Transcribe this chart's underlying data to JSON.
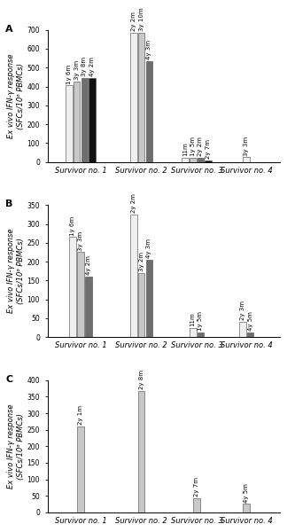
{
  "panels": [
    {
      "label": "A",
      "ylabel": "Ex vivo IFN-γ response\n(SFCs/10⁶ PBMCs)",
      "ylim": [
        0,
        700
      ],
      "yticks": [
        0,
        100,
        200,
        300,
        400,
        500,
        600,
        700
      ],
      "survivors": [
        {
          "name": "Survivor no. 1",
          "bars": [
            {
              "label": "1y 6m",
              "value": 405,
              "color": "#efefef"
            },
            {
              "label": "3y 3m",
              "value": 425,
              "color": "#c8c8c8"
            },
            {
              "label": "3y 8m",
              "value": 445,
              "color": "#6e6e6e"
            },
            {
              "label": "4y 2m",
              "value": 445,
              "color": "#111111"
            }
          ]
        },
        {
          "name": "Survivor no. 2",
          "bars": [
            {
              "label": "2y 2m",
              "value": 685,
              "color": "#efefef"
            },
            {
              "label": "3y 10m",
              "value": 685,
              "color": "#c8c8c8"
            },
            {
              "label": "4y 3m",
              "value": 535,
              "color": "#6e6e6e"
            }
          ]
        },
        {
          "name": "Survivor no. 3",
          "bars": [
            {
              "label": "11m",
              "value": 22,
              "color": "#efefef"
            },
            {
              "label": "1y 5m",
              "value": 22,
              "color": "#c8c8c8"
            },
            {
              "label": "2y 2m",
              "value": 22,
              "color": "#6e6e6e"
            },
            {
              "label": "2y 7m",
              "value": 8,
              "color": "#111111"
            }
          ]
        },
        {
          "name": "Survivor no. 4",
          "bars": [
            {
              "label": "3y 3m",
              "value": 25,
              "color": "#efefef"
            }
          ]
        }
      ]
    },
    {
      "label": "B",
      "ylabel": "Ex vivo IFN-γ response\n(SFCs/10⁶ PBMCs)",
      "ylim": [
        0,
        350
      ],
      "yticks": [
        0,
        50,
        100,
        150,
        200,
        250,
        300,
        350
      ],
      "survivors": [
        {
          "name": "Survivor no. 1",
          "bars": [
            {
              "label": "1y 6m",
              "value": 265,
              "color": "#efefef"
            },
            {
              "label": "3y 3m",
              "value": 225,
              "color": "#c8c8c8"
            },
            {
              "label": "4y 2m",
              "value": 160,
              "color": "#6e6e6e"
            }
          ]
        },
        {
          "name": "Survivor no. 2",
          "bars": [
            {
              "label": "2y 2m",
              "value": 325,
              "color": "#efefef"
            },
            {
              "label": "3y 2m",
              "value": 170,
              "color": "#c8c8c8"
            },
            {
              "label": "4y 3m",
              "value": 205,
              "color": "#6e6e6e"
            }
          ]
        },
        {
          "name": "Survivor no. 3",
          "bars": [
            {
              "label": "11m",
              "value": 25,
              "color": "#efefef"
            },
            {
              "label": "1y 5m",
              "value": 13,
              "color": "#6e6e6e"
            }
          ]
        },
        {
          "name": "Survivor no. 4",
          "bars": [
            {
              "label": "2y 3m",
              "value": 40,
              "color": "#efefef"
            },
            {
              "label": "4y 5m",
              "value": 12,
              "color": "#6e6e6e"
            }
          ]
        }
      ]
    },
    {
      "label": "C",
      "ylabel": "Ex vivo IFN-γ response\n(SFCs/10⁶ PBMCs)",
      "ylim": [
        0,
        400
      ],
      "yticks": [
        0,
        50,
        100,
        150,
        200,
        250,
        300,
        350,
        400
      ],
      "survivors": [
        {
          "name": "Survivor no. 1",
          "bars": [
            {
              "label": "2y 1m",
              "value": 260,
              "color": "#c8c8c8"
            }
          ]
        },
        {
          "name": "Survivor no. 2",
          "bars": [
            {
              "label": "2y 8m",
              "value": 368,
              "color": "#c8c8c8"
            }
          ]
        },
        {
          "name": "Survivor no. 3",
          "bars": [
            {
              "label": "2y 7m",
              "value": 43,
              "color": "#c8c8c8"
            }
          ]
        },
        {
          "name": "Survivor no. 4",
          "bars": [
            {
              "label": "4y 5m",
              "value": 25,
              "color": "#c8c8c8"
            }
          ]
        }
      ]
    }
  ],
  "background_color": "#ffffff",
  "bar_width": 0.28,
  "label_fontsize": 5.0,
  "axis_fontsize": 6.0,
  "tick_fontsize": 5.5,
  "panel_label_fontsize": 8,
  "group_centers": [
    1.0,
    3.2,
    5.2,
    7.0
  ],
  "xlim": [
    -0.2,
    8.2
  ]
}
